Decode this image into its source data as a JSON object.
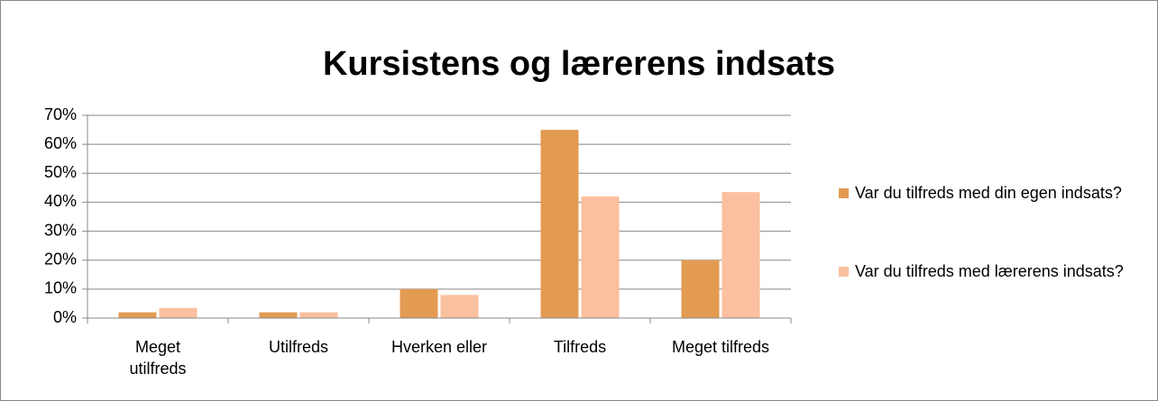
{
  "chart_data": {
    "type": "bar",
    "title": "Kursistens og lærerens indsats",
    "categories": [
      "Meget utilfreds",
      "Utilfreds",
      "Hverken eller",
      "Tilfreds",
      "Meget tilfreds"
    ],
    "series": [
      {
        "name": "Var du tilfreds med din egen indsats?",
        "color": "#e39b52",
        "values": [
          2,
          2,
          10,
          65,
          20
        ]
      },
      {
        "name": "Var du tilfreds med lærerens indsats?",
        "color": "#fac09f",
        "values": [
          3.5,
          2,
          8,
          42,
          43.5
        ]
      }
    ],
    "ylim": [
      0,
      70
    ],
    "yticks": [
      {
        "value": 0,
        "label": "0%"
      },
      {
        "value": 10,
        "label": "10%"
      },
      {
        "value": 20,
        "label": "20%"
      },
      {
        "value": 30,
        "label": "30%"
      },
      {
        "value": 40,
        "label": "40%"
      },
      {
        "value": 50,
        "label": "50%"
      },
      {
        "value": 60,
        "label": "60%"
      },
      {
        "value": 70,
        "label": "70%"
      }
    ],
    "grid": true,
    "legend": "right"
  }
}
